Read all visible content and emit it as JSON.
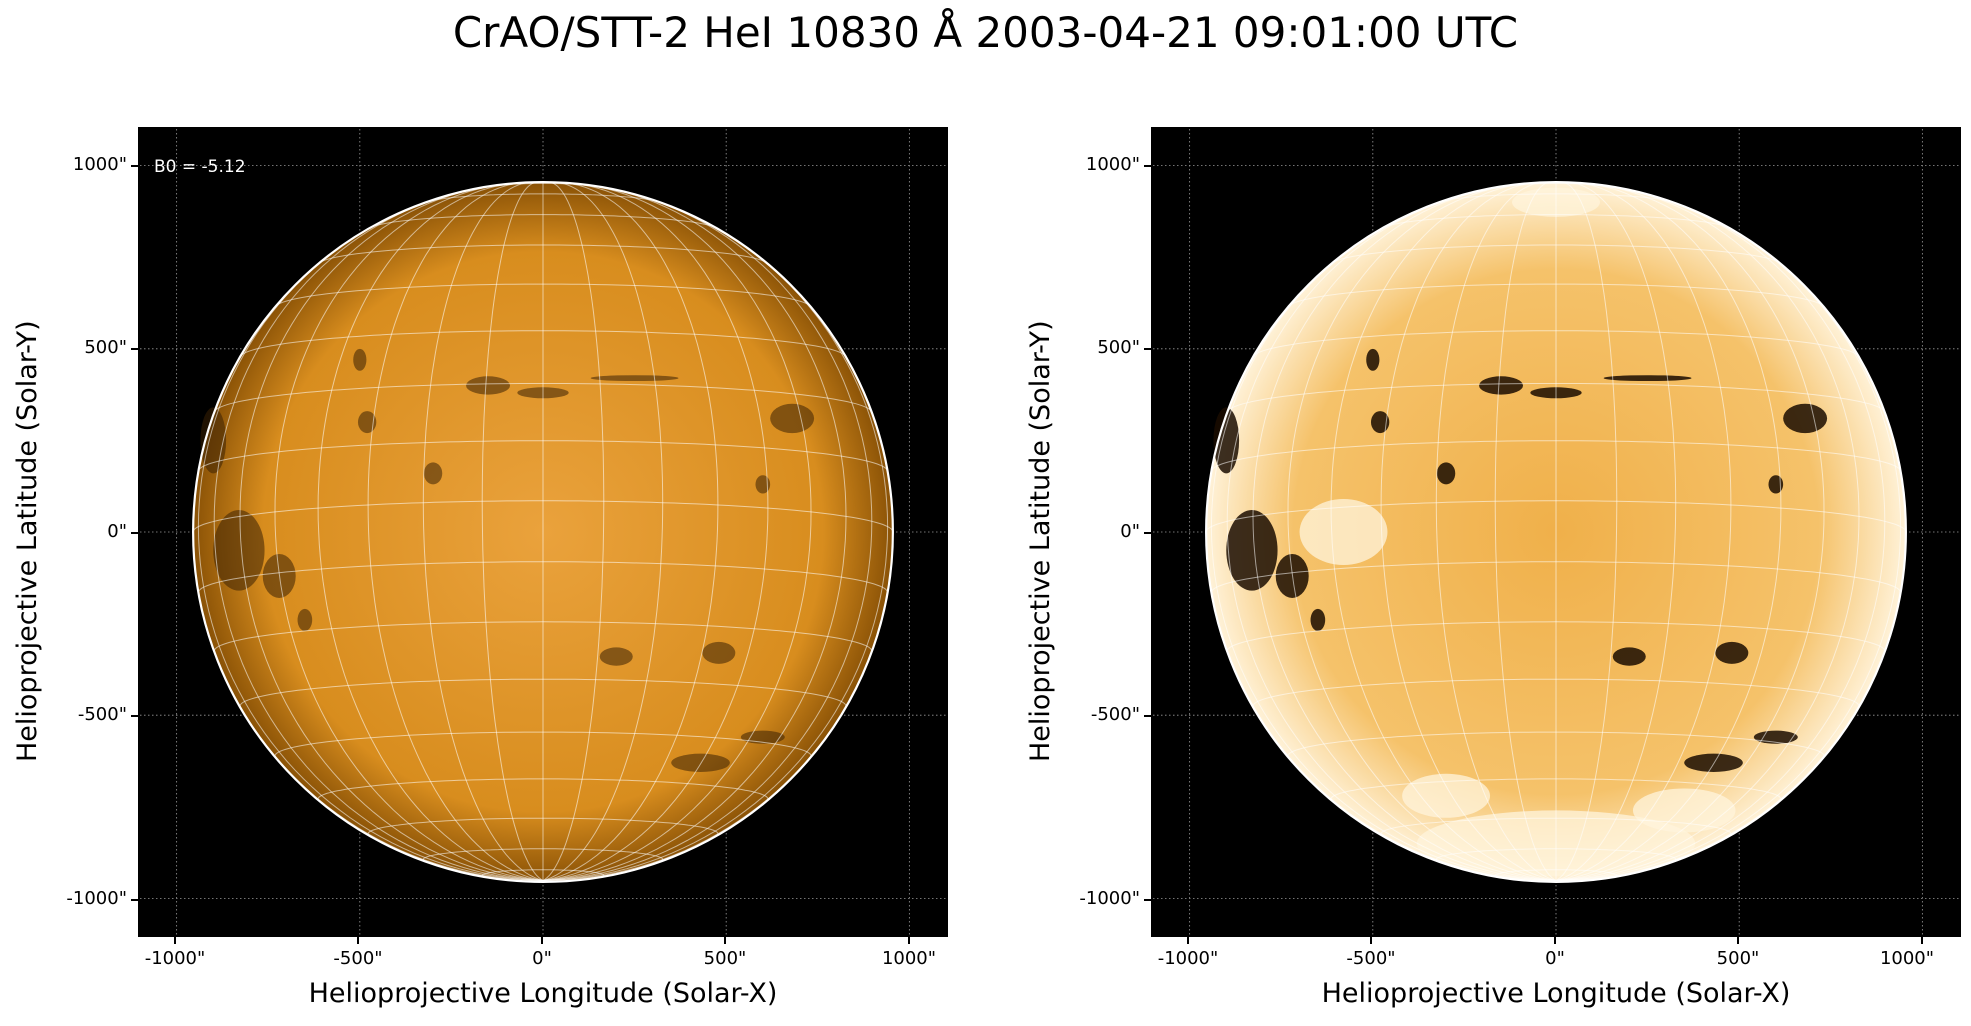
{
  "title": "CrAO/STT-2 HeI 10830 Å 2003-04-21 09:01:00 UTC",
  "left_panel": {
    "annotation": "B0 = -5.12",
    "xlabel": "Helioprojective Longitude (Solar-X)",
    "ylabel": "Helioprojective Latitude (Solar-Y)",
    "xticks": [
      "-1000\"",
      "-500\"",
      "0\"",
      "500\"",
      "1000\""
    ],
    "yticks": [
      "1000\"",
      "500\"",
      "0\"",
      "-500\"",
      "-1000\""
    ]
  },
  "right_panel": {
    "xlabel": "Helioprojective Longitude (Solar-X)",
    "ylabel": "Helioprojective Latitude (Solar-Y)",
    "xticks": [
      "-1000\"",
      "-500\"",
      "0\"",
      "500\"",
      "1000\""
    ],
    "yticks": [
      "1000\"",
      "500\"",
      "0\"",
      "-500\"",
      "-1000\""
    ]
  },
  "colors": {
    "disk_light": "#f2b04a",
    "disk_dark": "#b26a08",
    "limb": "#ffffff",
    "background": "#000000"
  },
  "axis_range_arcsec": {
    "x": [
      -1100,
      1100
    ],
    "y": [
      -1100,
      1100
    ]
  },
  "solar_radius_arcsec": 955,
  "grid_spacing_deg": 10
}
